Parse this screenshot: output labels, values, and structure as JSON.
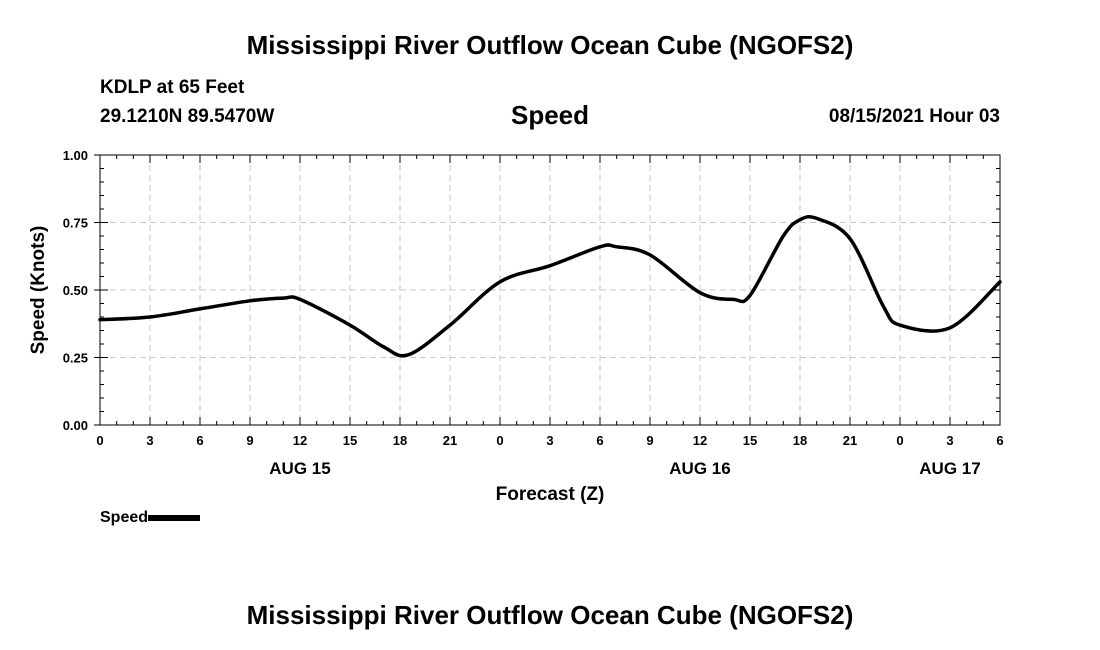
{
  "page": {
    "title_top": "Mississippi River Outflow Ocean Cube (NGOFS2)",
    "title_bottom": "Mississippi River Outflow Ocean Cube (NGOFS2)",
    "station": "KDLP at 65 Feet",
    "coords": "29.1210N  89.5470W",
    "variable": "Speed",
    "datetime": "08/15/2021 Hour 03",
    "legend_label": "Speed"
  },
  "chart_data": {
    "type": "line",
    "title": "Speed",
    "xlabel": "Forecast (Z)",
    "ylabel": "Speed (Knots)",
    "xlim": [
      0,
      54
    ],
    "ylim": [
      0,
      1
    ],
    "grid": true,
    "x_ticks": [
      0,
      3,
      6,
      9,
      12,
      15,
      18,
      21,
      24,
      27,
      30,
      33,
      36,
      39,
      42,
      45,
      48,
      51,
      54
    ],
    "x_tick_labels": [
      "0",
      "3",
      "6",
      "9",
      "12",
      "15",
      "18",
      "21",
      "0",
      "3",
      "6",
      "9",
      "12",
      "15",
      "18",
      "21",
      "0",
      "3",
      "6"
    ],
    "y_ticks": [
      0,
      0.25,
      0.5,
      0.75,
      1.0
    ],
    "y_tick_labels": [
      "0.00",
      "0.25",
      "0.50",
      "0.75",
      "1.00"
    ],
    "date_labels": [
      {
        "x": 12,
        "text": "AUG 15"
      },
      {
        "x": 36,
        "text": "AUG 16"
      },
      {
        "x": 51,
        "text": "AUG 17"
      }
    ],
    "legend": "bottom-left",
    "series": [
      {
        "name": "Speed",
        "color": "#000000",
        "x": [
          0,
          3,
          6,
          9,
          11,
          12,
          15,
          17,
          18.5,
          21,
          24,
          27,
          30,
          31,
          33,
          36,
          38,
          39,
          41,
          42,
          43,
          45,
          47,
          48,
          51,
          54
        ],
        "values": [
          0.39,
          0.4,
          0.43,
          0.46,
          0.47,
          0.465,
          0.37,
          0.29,
          0.26,
          0.37,
          0.53,
          0.59,
          0.66,
          0.66,
          0.63,
          0.49,
          0.465,
          0.48,
          0.7,
          0.76,
          0.765,
          0.69,
          0.44,
          0.37,
          0.36,
          0.53
        ]
      }
    ]
  }
}
